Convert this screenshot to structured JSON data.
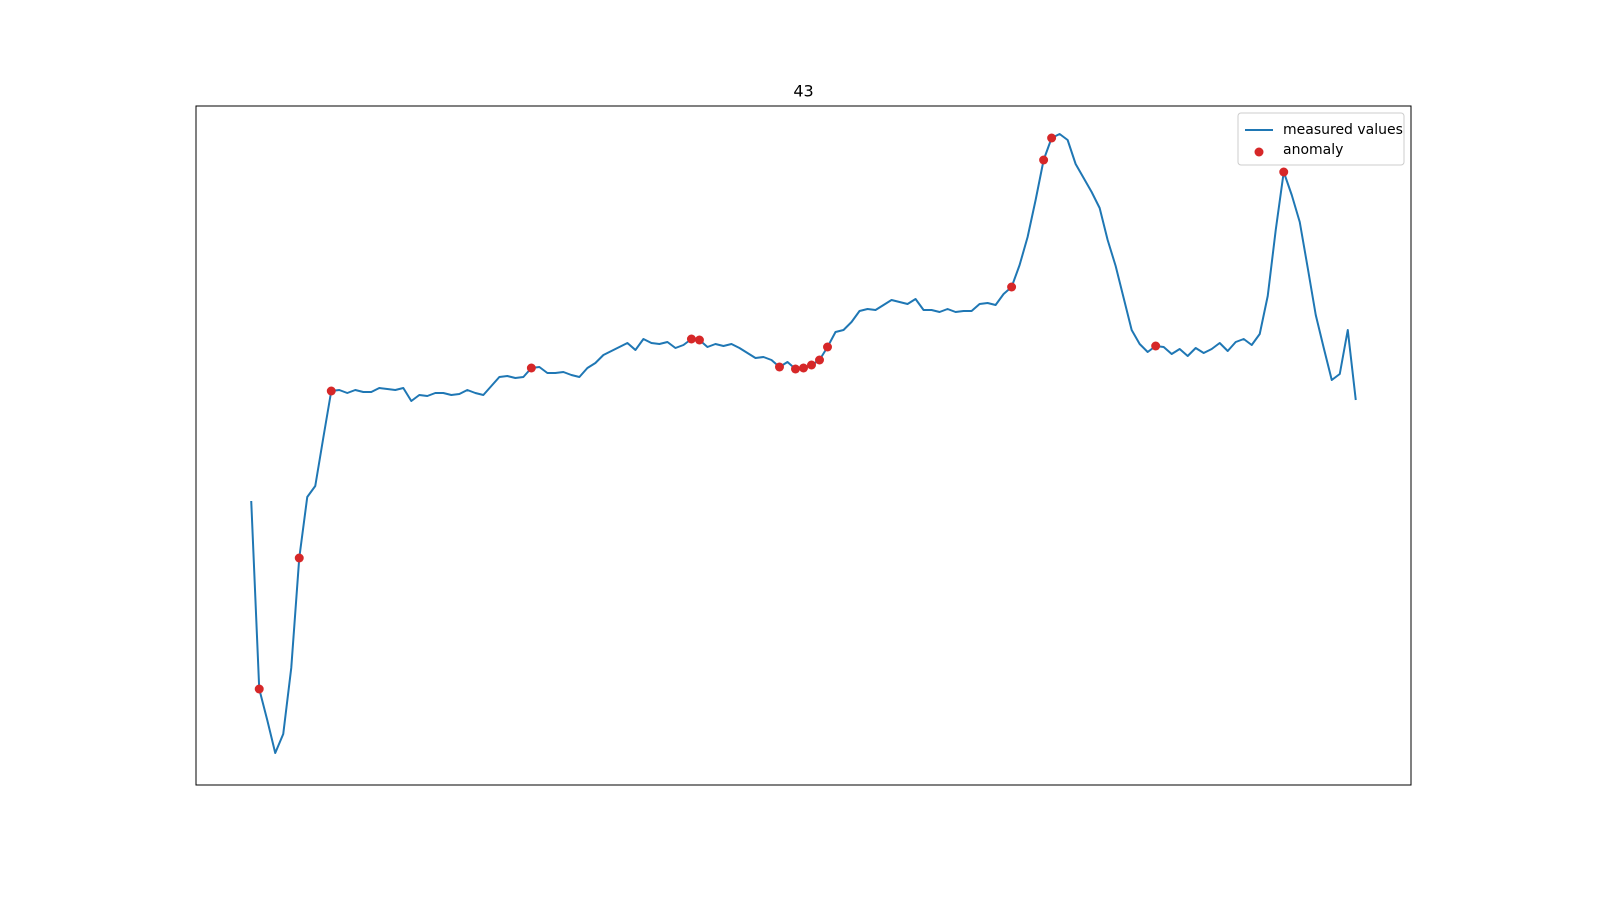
{
  "chart_data": {
    "type": "line",
    "title": "43",
    "xlim": [
      -6.9,
      144.9
    ],
    "ylim": [
      0,
      679
    ],
    "grid": false,
    "legend": "upper right",
    "series": [
      {
        "name": "measured values",
        "type": "line",
        "color": "#1f77b4",
        "x": [
          0,
          1,
          2,
          3,
          4,
          5,
          6,
          7,
          8,
          9,
          10,
          11,
          12,
          13,
          14,
          15,
          16,
          17,
          18,
          19,
          20,
          21,
          22,
          23,
          24,
          25,
          26,
          27,
          28,
          29,
          30,
          31,
          32,
          33,
          34,
          35,
          36,
          37,
          38,
          39,
          40,
          41,
          42,
          43,
          44,
          45,
          46,
          47,
          48,
          49,
          50,
          51,
          52,
          53,
          54,
          55,
          56,
          57,
          58,
          59,
          60,
          61,
          62,
          63,
          64,
          65,
          66,
          67,
          68,
          69,
          70,
          71,
          72,
          73,
          74,
          75,
          76,
          77,
          78,
          79,
          80,
          81,
          82,
          83,
          84,
          85,
          86,
          87,
          88,
          89,
          90,
          91,
          92,
          93,
          94,
          95,
          96,
          97,
          98,
          99,
          100,
          101,
          102,
          103,
          104,
          105,
          106,
          107,
          108,
          109,
          110,
          111,
          112,
          113,
          114,
          115,
          116,
          117,
          118,
          119,
          120,
          121,
          122,
          123,
          124,
          125,
          126,
          127,
          128,
          129,
          130,
          131,
          132,
          133,
          134,
          135,
          136,
          137,
          138
        ],
        "values": [
          284,
          96,
          65,
          32,
          51,
          117,
          227,
          288,
          299,
          347,
          394,
          395,
          392,
          395,
          393,
          393,
          397,
          396,
          395,
          397,
          384,
          390,
          389,
          392,
          392,
          390,
          391,
          395,
          392,
          390,
          399,
          408,
          409,
          407,
          408,
          417,
          418,
          412,
          412,
          413,
          410,
          408,
          417,
          422,
          430,
          434,
          438,
          442,
          435,
          446,
          442,
          441,
          443,
          437,
          440,
          446,
          445,
          438,
          441,
          439,
          441,
          437,
          432,
          427,
          428,
          425,
          418,
          423,
          416,
          417,
          420,
          425,
          438,
          453,
          455,
          463,
          474,
          476,
          475,
          480,
          485,
          483,
          481,
          486,
          475,
          475,
          473,
          476,
          473,
          474,
          474,
          481,
          482,
          480,
          491,
          498,
          520,
          548,
          585,
          625,
          647,
          651,
          645,
          621,
          607,
          593,
          577,
          545,
          519,
          487,
          455,
          441,
          433,
          439,
          438,
          431,
          436,
          429,
          437,
          432,
          436,
          442,
          434,
          443,
          446,
          440,
          451,
          489,
          555,
          613,
          590,
          563,
          517,
          470,
          437,
          405,
          411,
          455,
          385
        ]
      },
      {
        "name": "anomaly",
        "type": "scatter",
        "color": "#d62728",
        "x": [
          1,
          6,
          10,
          35,
          55,
          56,
          66,
          68,
          69,
          70,
          71,
          72,
          95,
          99,
          100,
          113,
          129
        ],
        "values": [
          96,
          227,
          394,
          417,
          446,
          445,
          418,
          416,
          417,
          420,
          425,
          438,
          498,
          625,
          647,
          439,
          613
        ]
      }
    ]
  }
}
